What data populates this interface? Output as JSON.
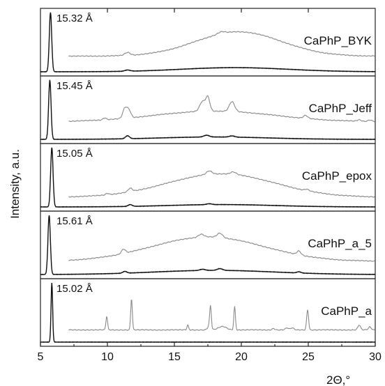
{
  "chart_data": {
    "type": "line",
    "title": "",
    "xlabel": "2Θ,°",
    "ylabel": "Intensity, a.u.",
    "xlim": [
      5,
      30
    ],
    "x_ticks": [
      5,
      10,
      15,
      20,
      25,
      30
    ],
    "x_tick_labels": [
      "5",
      "10",
      "15",
      "20",
      "25",
      "30"
    ],
    "grid": false,
    "colors": {
      "primary_trace": "#111111",
      "secondary_trace": "#8a8a8a"
    },
    "panels": [
      {
        "label": "CaPhP_BYK",
        "d_spacing_label": "15.32 Å",
        "black_peaks": [
          {
            "x": 5.75,
            "h": 1.0,
            "w": 0.09
          },
          {
            "x": 11.5,
            "h": 0.02,
            "w": 0.2
          }
        ],
        "black_hump": {
          "center": 19.5,
          "height": 0.07,
          "width": 4.0
        },
        "grey_start": 7.1,
        "grey_base": 0.12,
        "grey_hump": {
          "center": 19.8,
          "height": 0.5,
          "width": 3.2
        },
        "grey_peaks": [
          {
            "x": 11.5,
            "h": 0.06,
            "w": 0.2
          },
          {
            "x": 18.5,
            "h": 0.04,
            "w": 0.25
          }
        ]
      },
      {
        "label": "CaPhP_Jeff",
        "d_spacing_label": "15.45 Å",
        "black_peaks": [
          {
            "x": 5.7,
            "h": 1.0,
            "w": 0.09
          },
          {
            "x": 11.5,
            "h": 0.05,
            "w": 0.15
          },
          {
            "x": 17.4,
            "h": 0.03,
            "w": 0.2
          },
          {
            "x": 19.3,
            "h": 0.02,
            "w": 0.2
          }
        ],
        "black_hump": {
          "center": 18.0,
          "height": 0.04,
          "width": 4.0
        },
        "grey_start": 7.1,
        "grey_base": 0.16,
        "grey_hump": {
          "center": 18.0,
          "height": 0.22,
          "width": 4.5
        },
        "grey_peaks": [
          {
            "x": 9.8,
            "h": 0.04,
            "w": 0.12
          },
          {
            "x": 11.3,
            "h": 0.2,
            "w": 0.15
          },
          {
            "x": 11.6,
            "h": 0.16,
            "w": 0.15
          },
          {
            "x": 17.1,
            "h": 0.2,
            "w": 0.2
          },
          {
            "x": 17.5,
            "h": 0.28,
            "w": 0.15
          },
          {
            "x": 19.3,
            "h": 0.2,
            "w": 0.2
          },
          {
            "x": 24.8,
            "h": 0.06,
            "w": 0.15
          },
          {
            "x": 28.8,
            "h": 0.03,
            "w": 0.15
          },
          {
            "x": 29.6,
            "h": 0.03,
            "w": 0.15
          }
        ]
      },
      {
        "label": "CaPhP_epox",
        "d_spacing_label": "15.05 Å",
        "black_peaks": [
          {
            "x": 5.85,
            "h": 1.0,
            "w": 0.09
          },
          {
            "x": 11.7,
            "h": 0.03,
            "w": 0.15
          },
          {
            "x": 17.6,
            "h": 0.015,
            "w": 0.2
          }
        ],
        "black_hump": {
          "center": 18.5,
          "height": 0.04,
          "width": 4.0
        },
        "grey_start": 7.1,
        "grey_base": 0.0,
        "grey_hump": {
          "center": 18.5,
          "height": 0.48,
          "width": 4.0
        },
        "grey_peaks": [
          {
            "x": 10.0,
            "h": 0.03,
            "w": 0.12
          },
          {
            "x": 11.7,
            "h": 0.07,
            "w": 0.15
          },
          {
            "x": 17.6,
            "h": 0.07,
            "w": 0.2
          },
          {
            "x": 19.4,
            "h": 0.05,
            "w": 0.2
          },
          {
            "x": 24.9,
            "h": 0.03,
            "w": 0.15
          }
        ]
      },
      {
        "label": "CaPhP_a_5",
        "d_spacing_label": "15.61 Å",
        "black_peaks": [
          {
            "x": 5.65,
            "h": 1.0,
            "w": 0.09
          },
          {
            "x": 11.3,
            "h": 0.03,
            "w": 0.15
          },
          {
            "x": 17.1,
            "h": 0.02,
            "w": 0.2
          },
          {
            "x": 18.4,
            "h": 0.03,
            "w": 0.2
          },
          {
            "x": 24.3,
            "h": 0.02,
            "w": 0.15
          }
        ],
        "black_hump": {
          "center": 18.0,
          "height": 0.07,
          "width": 4.5
        },
        "grey_start": 7.1,
        "grey_base": 0.07,
        "grey_hump": {
          "center": 17.5,
          "height": 0.5,
          "width": 4.2
        },
        "grey_peaks": [
          {
            "x": 11.2,
            "h": 0.09,
            "w": 0.15
          },
          {
            "x": 17.0,
            "h": 0.06,
            "w": 0.2
          },
          {
            "x": 18.4,
            "h": 0.09,
            "w": 0.2
          },
          {
            "x": 24.3,
            "h": 0.08,
            "w": 0.15
          }
        ]
      },
      {
        "label": "CaPhP_a",
        "d_spacing_label": "15.02 Å",
        "black_peaks": [
          {
            "x": 5.85,
            "h": 1.0,
            "w": 0.06
          }
        ],
        "black_hump": {
          "center": 18.0,
          "height": 0.0,
          "width": 4.0
        },
        "grey_start": 7.1,
        "grey_base": 0.05,
        "grey_hump": {
          "center": 18.0,
          "height": 0.0,
          "width": 4.0
        },
        "grey_peaks": [
          {
            "x": 9.95,
            "h": 0.28,
            "w": 0.06
          },
          {
            "x": 11.8,
            "h": 0.65,
            "w": 0.06
          },
          {
            "x": 16.0,
            "h": 0.1,
            "w": 0.06
          },
          {
            "x": 17.7,
            "h": 0.45,
            "w": 0.06
          },
          {
            "x": 17.6,
            "h": 0.08,
            "w": 0.12
          },
          {
            "x": 18.6,
            "h": 0.07,
            "w": 0.3
          },
          {
            "x": 19.5,
            "h": 0.48,
            "w": 0.06
          },
          {
            "x": 22.4,
            "h": 0.03,
            "w": 0.1
          },
          {
            "x": 23.4,
            "h": 0.04,
            "w": 0.12
          },
          {
            "x": 23.8,
            "h": 0.04,
            "w": 0.12
          },
          {
            "x": 24.95,
            "h": 0.42,
            "w": 0.07
          },
          {
            "x": 28.8,
            "h": 0.1,
            "w": 0.1
          },
          {
            "x": 29.6,
            "h": 0.06,
            "w": 0.1
          }
        ]
      }
    ]
  }
}
